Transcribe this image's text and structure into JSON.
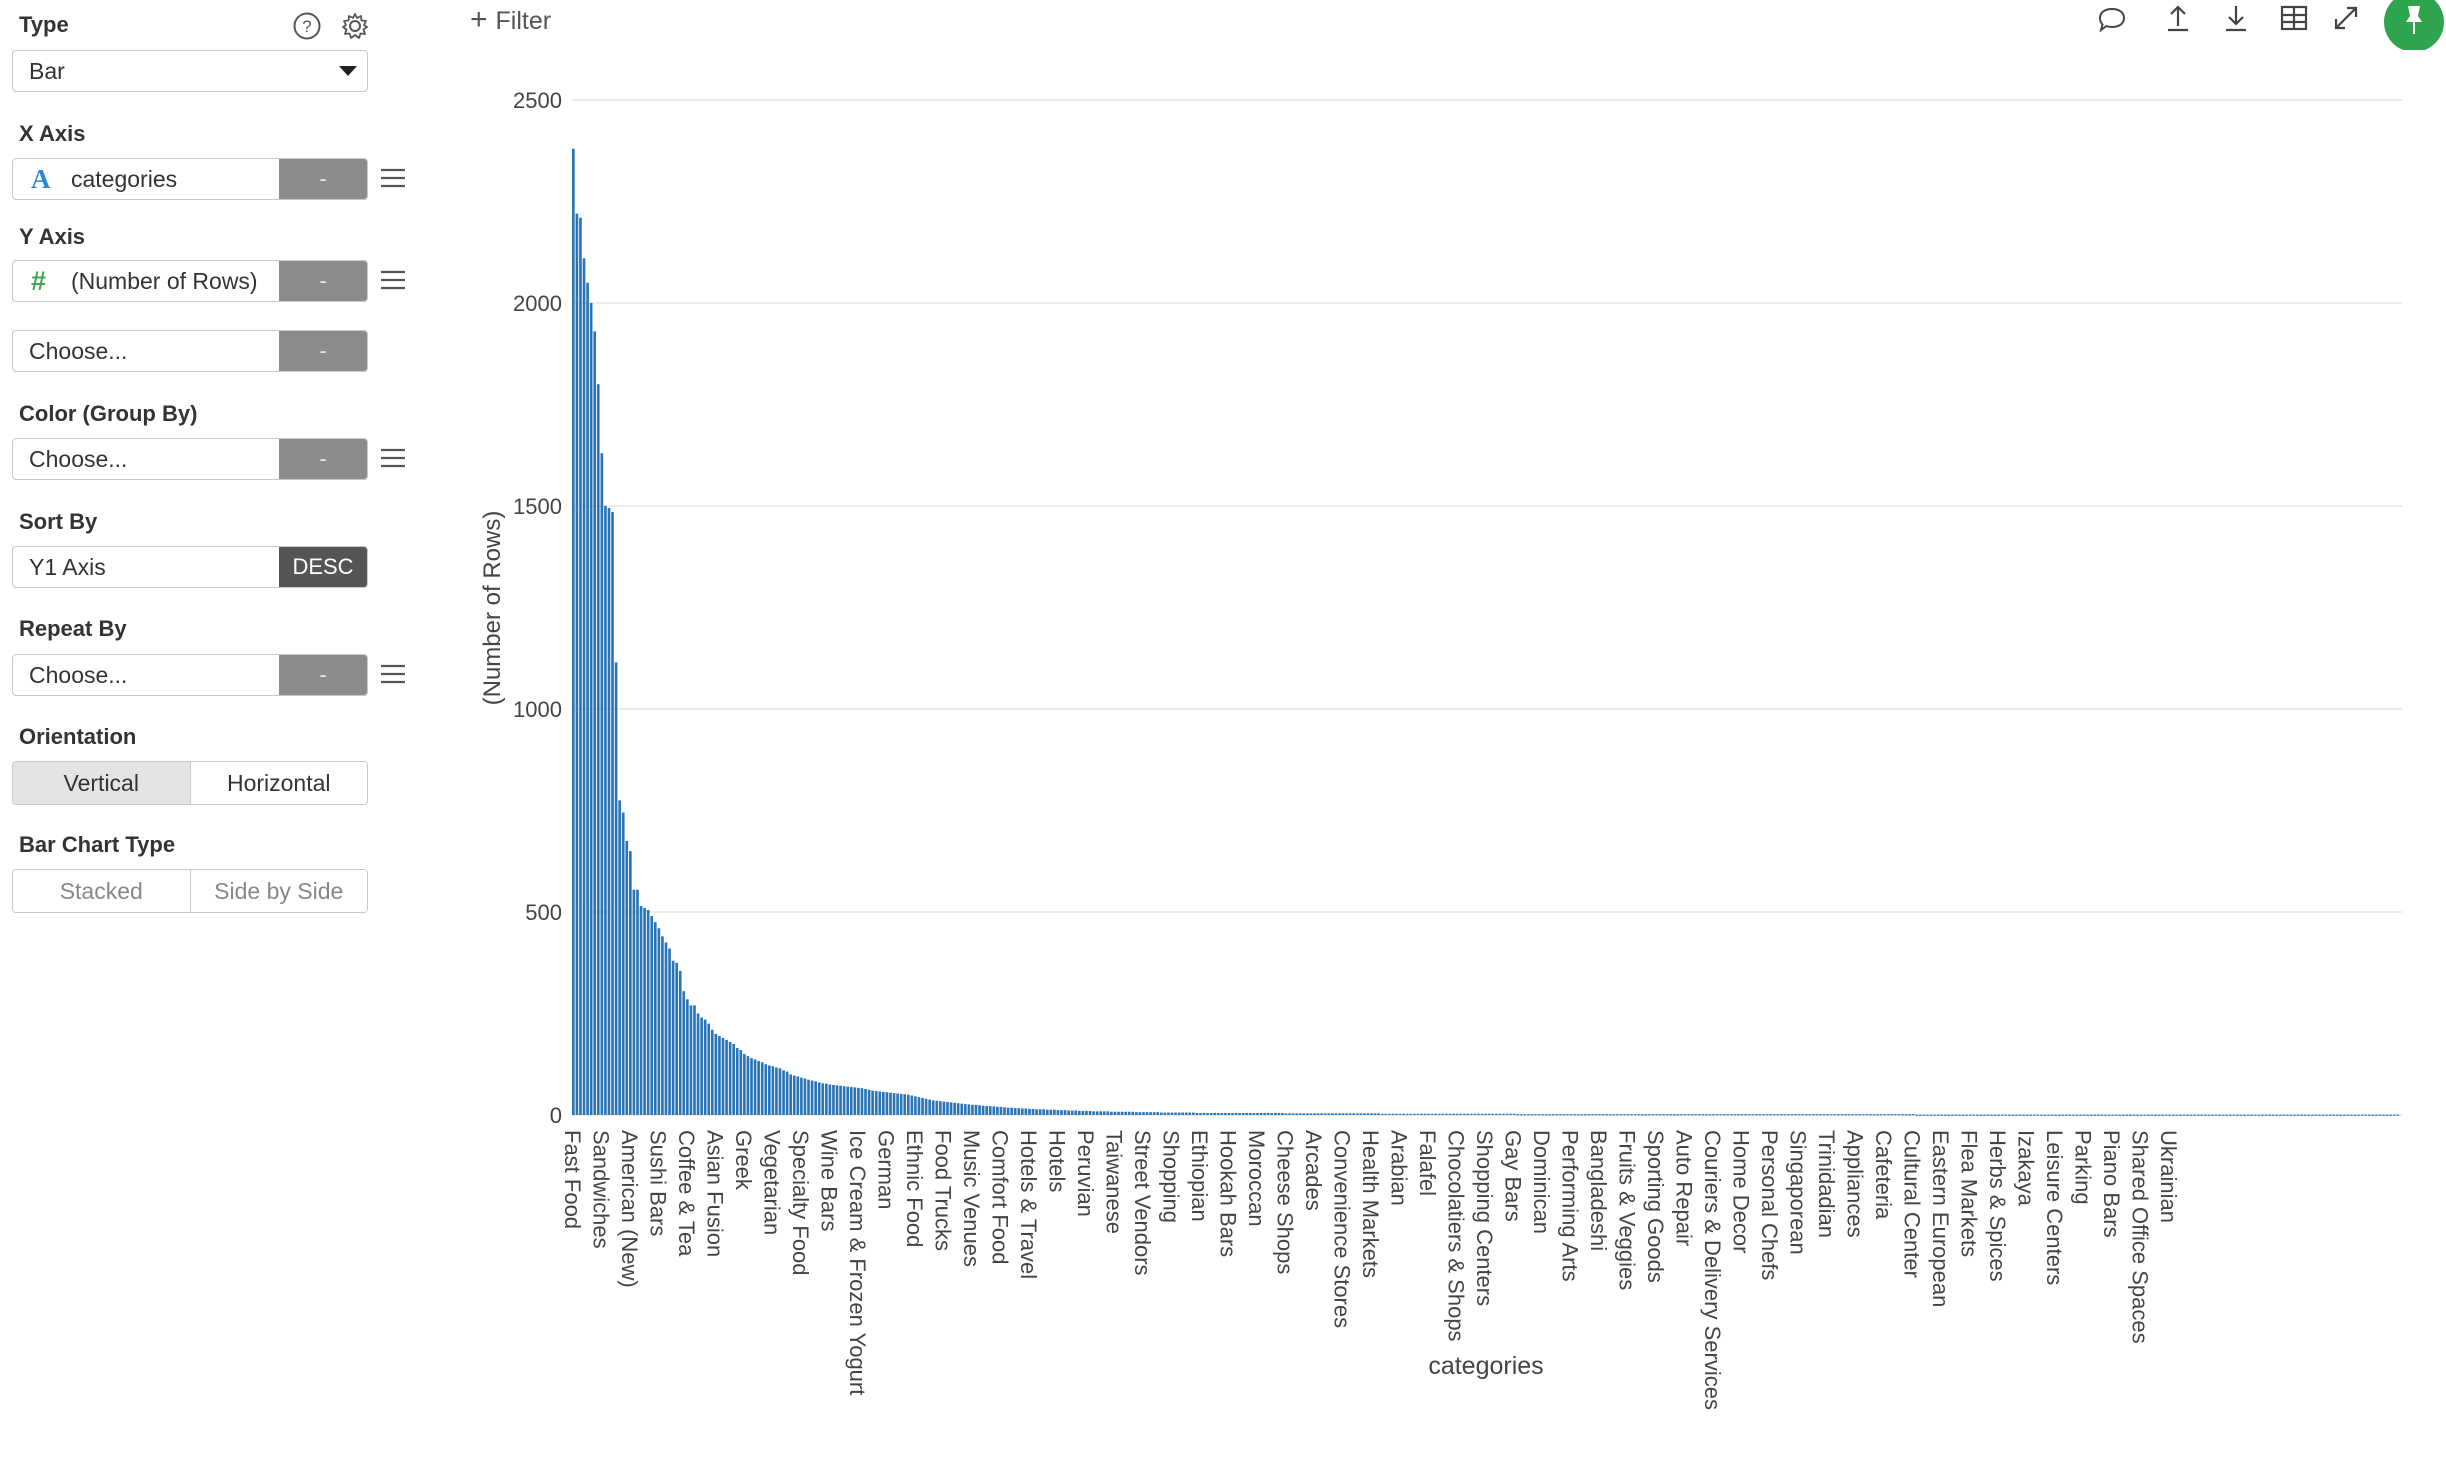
{
  "filter_label": "Filter",
  "sidebar": {
    "type_label": "Type",
    "type_value": "Bar",
    "x_axis_label": "X Axis",
    "x_axis_value": "categories",
    "x_axis_tag": "-",
    "y_axis_label": "Y Axis",
    "y_axis_value": "(Number of Rows)",
    "y_axis_tag": "-",
    "y2_value": "Choose...",
    "y2_tag": "-",
    "color_label": "Color (Group By)",
    "color_value": "Choose...",
    "color_tag": "-",
    "sort_label": "Sort By",
    "sort_value": "Y1 Axis",
    "sort_order": "DESC",
    "repeat_label": "Repeat By",
    "repeat_value": "Choose...",
    "repeat_tag": "-",
    "orientation_label": "Orientation",
    "orientation_options": [
      "Vertical",
      "Horizontal"
    ],
    "orientation_selected": "Vertical",
    "bar_type_label": "Bar Chart Type",
    "bar_type_options": [
      "Stacked",
      "Side by Side"
    ]
  },
  "toolbar_icons": [
    "comment-icon",
    "upload-icon",
    "download-icon",
    "table-icon",
    "expand-icon",
    "pin-icon"
  ],
  "colors": {
    "bar": "#2b75b7",
    "accent": "#2ea44f"
  },
  "chart_data": {
    "type": "bar",
    "xlabel": "categories",
    "ylabel": "(Number of Rows)",
    "ylim": [
      0,
      2500
    ],
    "yticks": [
      0,
      500,
      1000,
      1500,
      2000,
      2500
    ],
    "grid": true,
    "values": [
      2380,
      2220,
      2210,
      2110,
      2050,
      2000,
      1930,
      1800,
      1630,
      1500,
      1495,
      1485,
      1115,
      775,
      745,
      675,
      650,
      555,
      555,
      515,
      510,
      505,
      490,
      475,
      460,
      440,
      425,
      410,
      380,
      375,
      355,
      305,
      285,
      270,
      270,
      250,
      240,
      235,
      225,
      210,
      200,
      195,
      190,
      185,
      180,
      175,
      165,
      160,
      150,
      145,
      140,
      137,
      133,
      130,
      125,
      122,
      120,
      117,
      115,
      110,
      107,
      100,
      97,
      95,
      92,
      90,
      87,
      85,
      83,
      80,
      78,
      77,
      75,
      74,
      73,
      72,
      71,
      70,
      69,
      68,
      67,
      66,
      64,
      62,
      60,
      59,
      58,
      57,
      56,
      55,
      54,
      53,
      52,
      51,
      50,
      48,
      46,
      44,
      42,
      40,
      38,
      36,
      35,
      34,
      33,
      32,
      31,
      30,
      29,
      28,
      27,
      26,
      25,
      25,
      24,
      23,
      22,
      22,
      21,
      20,
      20,
      19,
      18,
      18,
      17,
      17,
      16,
      16,
      15,
      15,
      14,
      14,
      14,
      13,
      13,
      13,
      12,
      12,
      12,
      11,
      11,
      11,
      10,
      10,
      10,
      10,
      9,
      9,
      9,
      9,
      9,
      8,
      8,
      8,
      8,
      8,
      8,
      8,
      7,
      7,
      7,
      7,
      7,
      7,
      7,
      6,
      6,
      6,
      6,
      6,
      6,
      6,
      6,
      6,
      6,
      5,
      5,
      5,
      5,
      5,
      5,
      5,
      5,
      5,
      5,
      5,
      5,
      5,
      5,
      5,
      5,
      5,
      5,
      5,
      5,
      5,
      5,
      5,
      5,
      5,
      4,
      4,
      4,
      4,
      4,
      4,
      4,
      4,
      4,
      4,
      4,
      4,
      4,
      4,
      4,
      4,
      4,
      4,
      4,
      4,
      4,
      4,
      4,
      4,
      4,
      4,
      4,
      3,
      3,
      3,
      3,
      3,
      3,
      3,
      3,
      3,
      3,
      3,
      3,
      3,
      3,
      3,
      3,
      3,
      3,
      3,
      3,
      3,
      3,
      3,
      3,
      3,
      3,
      3,
      3,
      3,
      3,
      3,
      3,
      3,
      3,
      3,
      3,
      3,
      3,
      2,
      2,
      2,
      2,
      2,
      2,
      2,
      2,
      2,
      2,
      2,
      2,
      2,
      2,
      2,
      2,
      2,
      2,
      2,
      2,
      2,
      2,
      2,
      2,
      2,
      2,
      2,
      2,
      2,
      2,
      2,
      2,
      2,
      2,
      2,
      2,
      2,
      2,
      2,
      2,
      2,
      2,
      2,
      2,
      2,
      2,
      2,
      2,
      2,
      2,
      2,
      2,
      2,
      2,
      2,
      2,
      2,
      2,
      2,
      2,
      2,
      2,
      2,
      2,
      2,
      2,
      2,
      2,
      2,
      2,
      2,
      2,
      2,
      2,
      2,
      2,
      2,
      2,
      2,
      2,
      2,
      2,
      2,
      2,
      2,
      2,
      2,
      2,
      2,
      2,
      2,
      2,
      2,
      2,
      2,
      2,
      2,
      2,
      2,
      2,
      2,
      2,
      2,
      2,
      2,
      2,
      2,
      2,
      2,
      2,
      2,
      2,
      1,
      1,
      1,
      1,
      1,
      1,
      1,
      1,
      1,
      1,
      1,
      1,
      1,
      1,
      1,
      1,
      1,
      1,
      1,
      1,
      1,
      1,
      1,
      1,
      1,
      1,
      1,
      1,
      1,
      1,
      1,
      1,
      1,
      1,
      1,
      1,
      1,
      1,
      1,
      1,
      1,
      1,
      1,
      1,
      1,
      1,
      1,
      1,
      1,
      1,
      1,
      1,
      1,
      1,
      1,
      1,
      1,
      1,
      1,
      1,
      1,
      1,
      1,
      1,
      1,
      1,
      1,
      1,
      1,
      1,
      1,
      1,
      1,
      1,
      1,
      1,
      1,
      1,
      1,
      1,
      1,
      1,
      1,
      1,
      1,
      1,
      1,
      1,
      1,
      1,
      1,
      1,
      1,
      1,
      1,
      1,
      1,
      1,
      1,
      1,
      1,
      1,
      1,
      1,
      1,
      1,
      1,
      1,
      1,
      1,
      1,
      1,
      1,
      1,
      1,
      1,
      1,
      1,
      1,
      1,
      1,
      1,
      1,
      1,
      1,
      1,
      1,
      1,
      1,
      1,
      1,
      1,
      1,
      1,
      1,
      1
    ],
    "labeled_categories": [
      {
        "index": 0,
        "label": "Fast Food"
      },
      {
        "index": 8,
        "label": "Sandwiches"
      },
      {
        "index": 16,
        "label": "American (New)"
      },
      {
        "index": 24,
        "label": "Sushi Bars"
      },
      {
        "index": 32,
        "label": "Coffee & Tea"
      },
      {
        "index": 40,
        "label": "Asian Fusion"
      },
      {
        "index": 48,
        "label": "Greek"
      },
      {
        "index": 56,
        "label": "Vegetarian"
      },
      {
        "index": 64,
        "label": "Specialty Food"
      },
      {
        "index": 72,
        "label": "Wine Bars"
      },
      {
        "index": 80,
        "label": "Ice Cream & Frozen Yogurt"
      },
      {
        "index": 88,
        "label": "German"
      },
      {
        "index": 96,
        "label": "Ethnic Food"
      },
      {
        "index": 104,
        "label": "Food Trucks"
      },
      {
        "index": 112,
        "label": "Music Venues"
      },
      {
        "index": 120,
        "label": "Comfort Food"
      },
      {
        "index": 128,
        "label": "Hotels & Travel"
      },
      {
        "index": 136,
        "label": "Hotels"
      },
      {
        "index": 144,
        "label": "Peruvian"
      },
      {
        "index": 152,
        "label": "Taiwanese"
      },
      {
        "index": 160,
        "label": "Street Vendors"
      },
      {
        "index": 168,
        "label": "Shopping"
      },
      {
        "index": 176,
        "label": "Ethiopian"
      },
      {
        "index": 184,
        "label": "Hookah Bars"
      },
      {
        "index": 192,
        "label": "Moroccan"
      },
      {
        "index": 200,
        "label": "Cheese Shops"
      },
      {
        "index": 208,
        "label": "Arcades"
      },
      {
        "index": 216,
        "label": "Convenience Stores"
      },
      {
        "index": 224,
        "label": "Health Markets"
      },
      {
        "index": 232,
        "label": "Arabian"
      },
      {
        "index": 240,
        "label": "Falafel"
      },
      {
        "index": 248,
        "label": "Chocolatiers & Shops"
      },
      {
        "index": 256,
        "label": "Shopping Centers"
      },
      {
        "index": 264,
        "label": "Gay Bars"
      },
      {
        "index": 272,
        "label": "Dominican"
      },
      {
        "index": 280,
        "label": "Performing Arts"
      },
      {
        "index": 288,
        "label": "Bangladeshi"
      },
      {
        "index": 296,
        "label": "Fruits & Veggies"
      },
      {
        "index": 304,
        "label": "Sporting Goods"
      },
      {
        "index": 312,
        "label": "Auto Repair"
      },
      {
        "index": 320,
        "label": "Couriers & Delivery Services"
      },
      {
        "index": 328,
        "label": "Home Decor"
      },
      {
        "index": 336,
        "label": "Personal Chefs"
      },
      {
        "index": 344,
        "label": "Singaporean"
      },
      {
        "index": 352,
        "label": "Trinidadian"
      },
      {
        "index": 360,
        "label": "Appliances"
      },
      {
        "index": 368,
        "label": "Cafeteria"
      },
      {
        "index": 376,
        "label": "Cultural Center"
      },
      {
        "index": 384,
        "label": "Eastern European"
      },
      {
        "index": 392,
        "label": "Flea Markets"
      },
      {
        "index": 400,
        "label": "Herbs & Spices"
      },
      {
        "index": 408,
        "label": "Izakaya"
      },
      {
        "index": 416,
        "label": "Leisure Centers"
      },
      {
        "index": 424,
        "label": "Parking"
      },
      {
        "index": 432,
        "label": "Piano Bars"
      },
      {
        "index": 440,
        "label": "Shared Office Spaces"
      },
      {
        "index": 448,
        "label": "Ukrainian"
      }
    ]
  }
}
